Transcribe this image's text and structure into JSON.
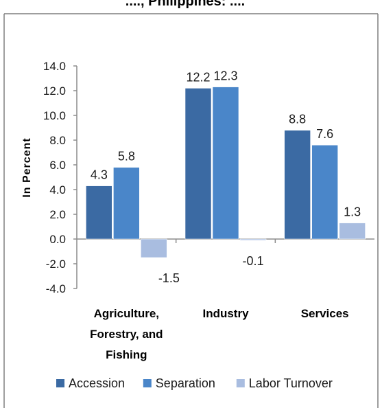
{
  "header": {
    "cut_title": "...., Philippines: ...."
  },
  "colors": {
    "accession": "#3b6aa3",
    "separation": "#4a86c9",
    "labor_turnover": "#a9bde0",
    "axis": "#8c8c8c",
    "frame": "#7f7f7f"
  },
  "chart_data": {
    "type": "bar",
    "title": "",
    "xlabel": "",
    "ylabel": "In Percent",
    "ylim": [
      -4.0,
      14.0
    ],
    "ytick_step": 2.0,
    "yticks": [
      "14.0",
      "12.0",
      "10.0",
      "8.0",
      "6.0",
      "4.0",
      "2.0",
      "0.0",
      "-2.0",
      "-4.0"
    ],
    "categories": [
      [
        "Agriculture,",
        "Forestry, and",
        "Fishing"
      ],
      [
        "Industry"
      ],
      [
        "Services"
      ]
    ],
    "series": [
      {
        "name": "Accession",
        "values": [
          4.3,
          12.2,
          8.8
        ],
        "labels": [
          "4.3",
          "12.2",
          "8.8"
        ]
      },
      {
        "name": "Separation",
        "values": [
          5.8,
          12.3,
          7.6
        ],
        "labels": [
          "5.8",
          "12.3",
          "7.6"
        ]
      },
      {
        "name": "Labor Turnover",
        "values": [
          -1.5,
          -0.1,
          1.3
        ],
        "labels": [
          "-1.5",
          "-0.1",
          "1.3"
        ]
      }
    ],
    "legend_position": "bottom",
    "grid": false
  }
}
